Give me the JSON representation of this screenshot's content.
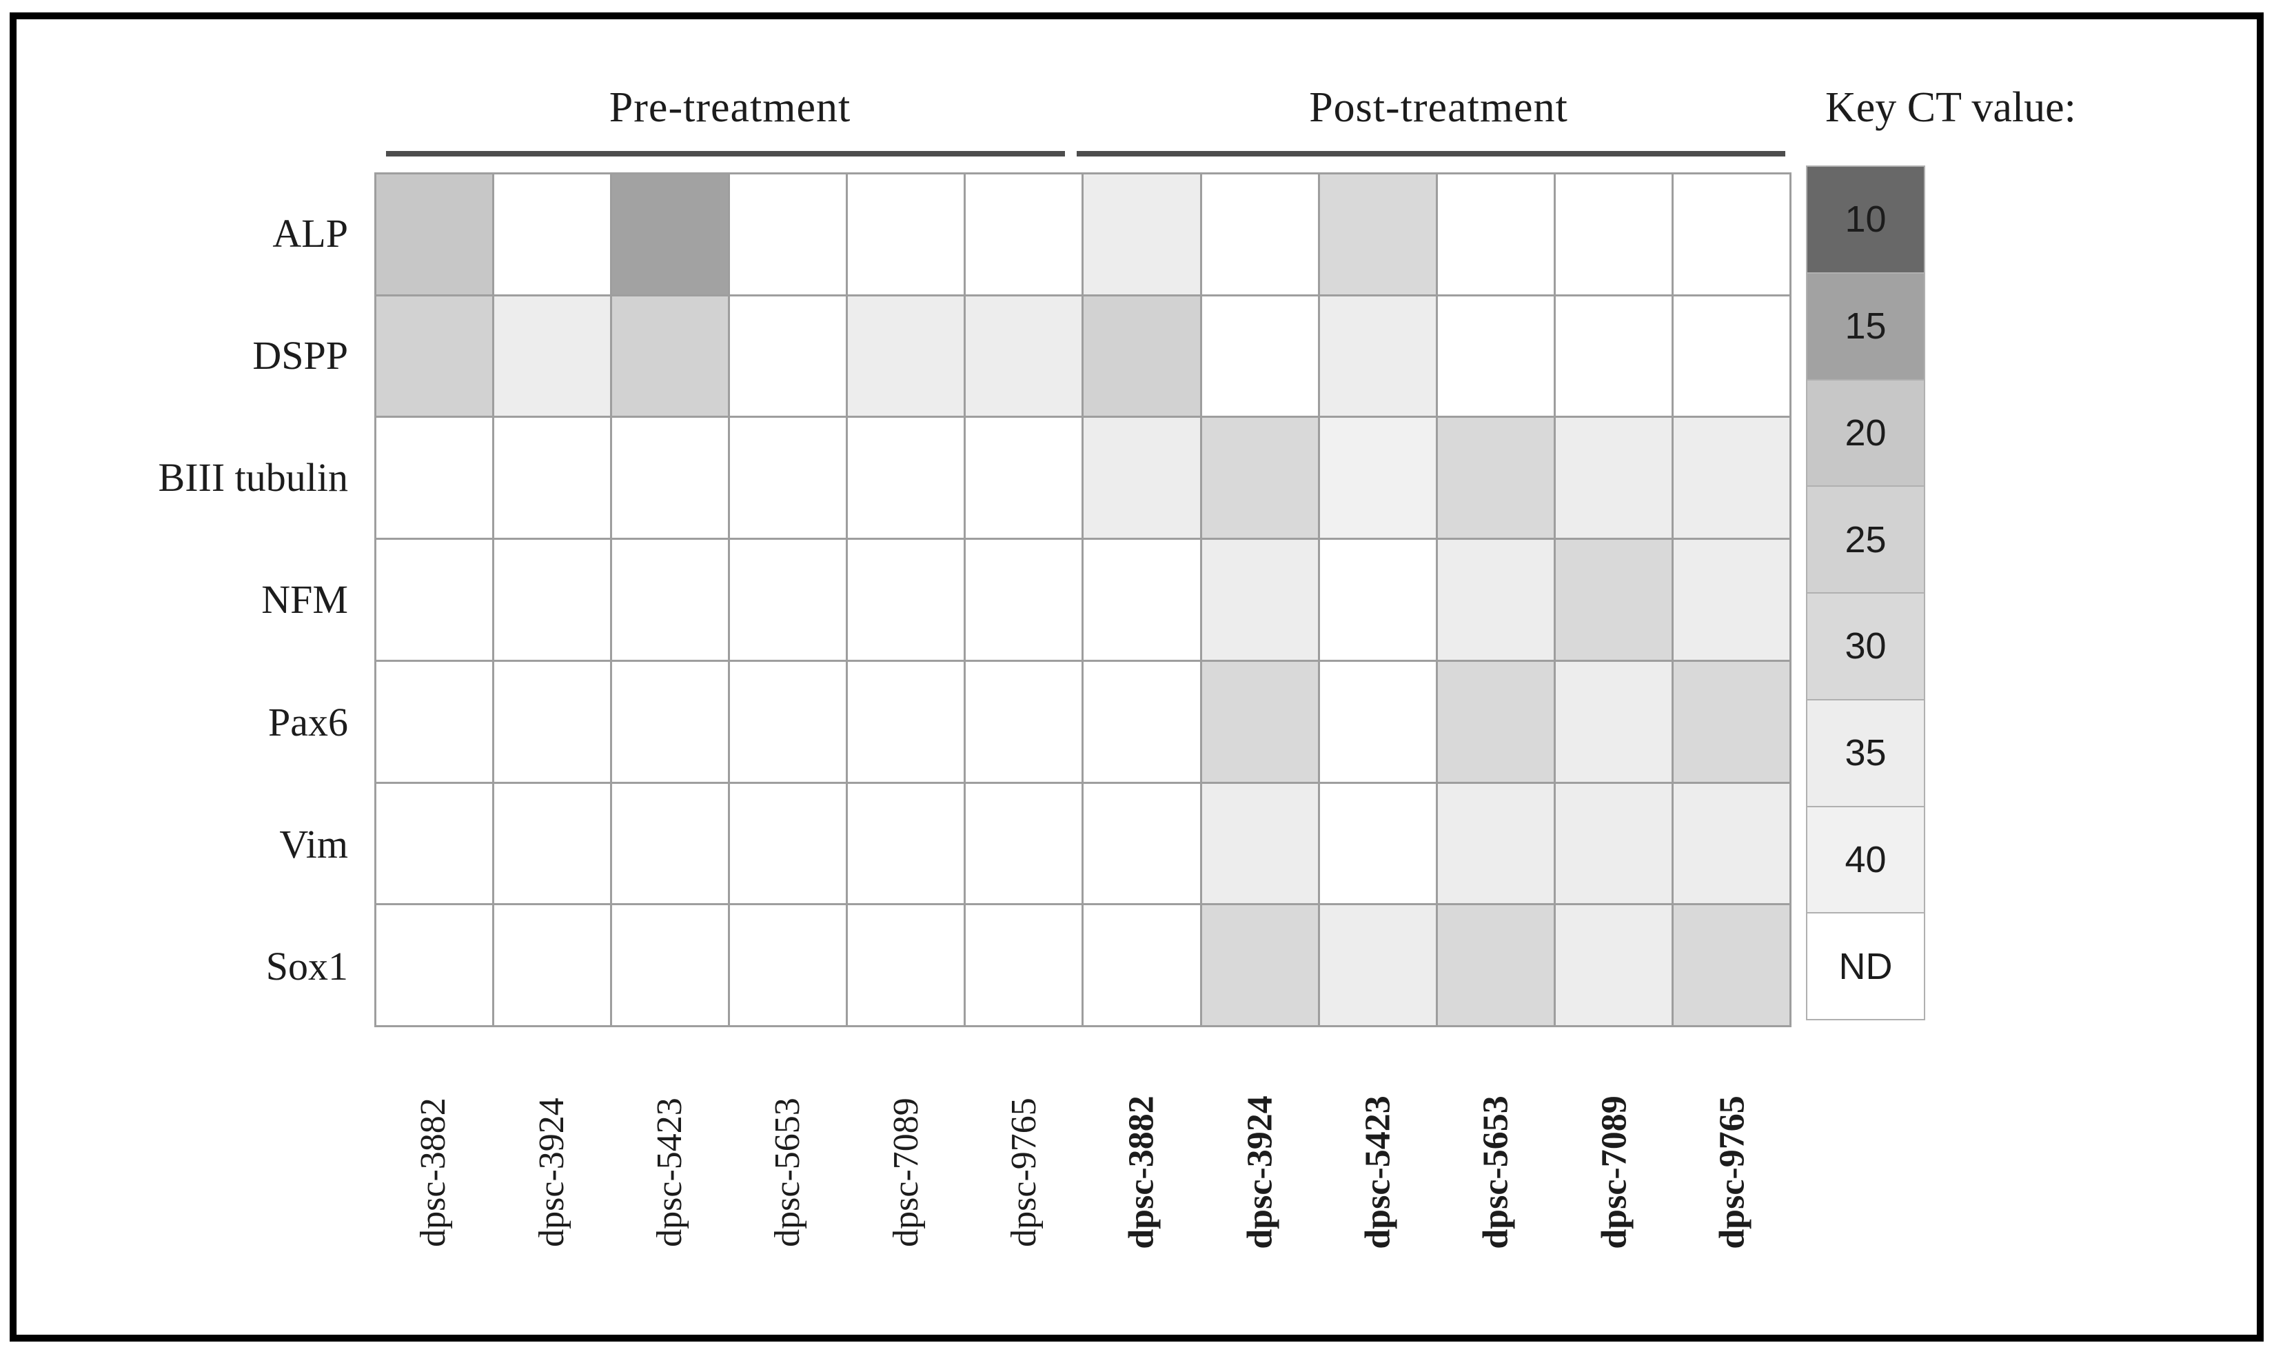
{
  "chart_data": {
    "type": "heatmap",
    "title": "",
    "rows": [
      "ALP",
      "DSPP",
      "BIII tubulin",
      "NFM",
      "Pax6",
      "Vim",
      "Sox1"
    ],
    "column_groups": [
      {
        "name": "Pre-treatment",
        "columns": [
          "dpsc-3882",
          "dpsc-3924",
          "dpsc-5423",
          "dpsc-5653",
          "dpsc-7089",
          "dpsc-9765"
        ],
        "bold_labels": false
      },
      {
        "name": "Post-treatment",
        "columns": [
          "dpsc-3882",
          "dpsc-3924",
          "dpsc-5423",
          "dpsc-5653",
          "dpsc-7089",
          "dpsc-9765"
        ],
        "bold_labels": true
      }
    ],
    "values_ct": [
      [
        "20",
        "ND",
        "15",
        "ND",
        "ND",
        "ND",
        "35",
        "ND",
        "30",
        "ND",
        "ND",
        "ND"
      ],
      [
        "25",
        "35",
        "25",
        "ND",
        "35",
        "35",
        "25",
        "ND",
        "35",
        "ND",
        "ND",
        "ND"
      ],
      [
        "ND",
        "ND",
        "ND",
        "ND",
        "ND",
        "ND",
        "35",
        "30",
        "40",
        "30",
        "35",
        "35"
      ],
      [
        "ND",
        "ND",
        "ND",
        "ND",
        "ND",
        "ND",
        "ND",
        "35",
        "ND",
        "35",
        "30",
        "35"
      ],
      [
        "ND",
        "ND",
        "ND",
        "ND",
        "ND",
        "ND",
        "ND",
        "30",
        "ND",
        "30",
        "35",
        "30"
      ],
      [
        "ND",
        "ND",
        "ND",
        "ND",
        "ND",
        "ND",
        "ND",
        "35",
        "ND",
        "35",
        "35",
        "35"
      ],
      [
        "ND",
        "ND",
        "ND",
        "ND",
        "ND",
        "ND",
        "ND",
        "30",
        "35",
        "30",
        "35",
        "30"
      ]
    ],
    "legend": {
      "title": "Key CT value:",
      "position": "right",
      "levels": [
        "10",
        "15",
        "20",
        "25",
        "30",
        "35",
        "40",
        "ND"
      ],
      "colors": {
        "10": "#686868",
        "15": "#a2a2a2",
        "20": "#c7c7c7",
        "25": "#d2d2d2",
        "30": "#d9d9d9",
        "35": "#ededed",
        "40": "#f1f1f1",
        "ND": "#ffffff"
      }
    },
    "grid": true,
    "grid_color": "#9e9e9e"
  }
}
